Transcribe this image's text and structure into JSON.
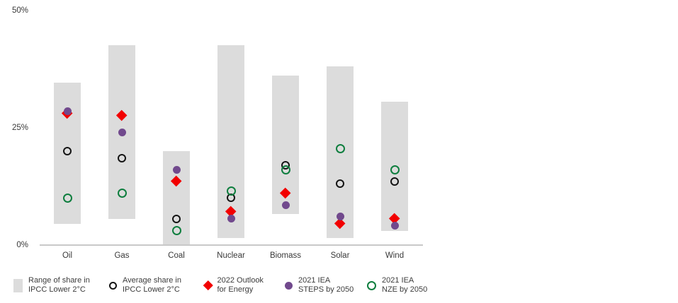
{
  "chart_data": {
    "type": "bar",
    "subtype": "range-columns-with-point-markers",
    "title": "",
    "xlabel": "",
    "ylabel": "",
    "unit": "%",
    "ylim": [
      0,
      50
    ],
    "grid": false,
    "y_ticks": [
      {
        "label": "50%",
        "value": 50
      },
      {
        "label": "25%",
        "value": 25
      },
      {
        "label": "0%",
        "value": 0
      }
    ],
    "categories": [
      "Oil",
      "Gas",
      "Coal",
      "Nuclear",
      "Biomass",
      "Solar",
      "Wind"
    ],
    "range_series": {
      "name": "Range of share in IPCC Lower 2°C",
      "low": [
        4.5,
        5.5,
        0,
        1.5,
        6.5,
        1.5,
        3
      ],
      "high": [
        34.5,
        42.5,
        20,
        42.5,
        36,
        38,
        30.5
      ]
    },
    "series": [
      {
        "name": "Average share in IPCC Lower 2°C",
        "marker": "open-circle",
        "color": "#141414",
        "values": [
          20,
          18.5,
          5.5,
          10,
          17,
          13,
          13.5
        ]
      },
      {
        "name": "2021 IEA NZE by 2050",
        "marker": "open-circle",
        "color": "#0e7e3e",
        "values": [
          10,
          11,
          3,
          11.5,
          16,
          20.5,
          16
        ]
      },
      {
        "name": "2022 Outlook for Energy",
        "marker": "diamond",
        "color": "#f20000",
        "values": [
          28,
          27.5,
          13.5,
          7,
          11,
          4.5,
          5.5
        ]
      },
      {
        "name": "2021 IEA STEPS by 2050",
        "marker": "filled-circle",
        "color": "#71498d",
        "values": [
          28.5,
          24,
          16,
          5.5,
          8.5,
          6,
          4
        ]
      }
    ],
    "legend_position": "bottom"
  },
  "legend": {
    "items": [
      {
        "swatch": "range-bar",
        "line1": "Range of share in",
        "line2": "IPCC Lower 2°C"
      },
      {
        "swatch": "open-circle-black",
        "line1": "Average share in",
        "line2": "IPCC Lower 2°C"
      },
      {
        "swatch": "diamond-red",
        "line1": "2022 Outlook",
        "line2": "for Energy"
      },
      {
        "swatch": "filled-circle-purple",
        "line1": "2021 IEA",
        "line2": "STEPS by 2050"
      },
      {
        "swatch": "open-circle-green",
        "line1": "2021 IEA",
        "line2": "NZE by 2050"
      }
    ]
  },
  "colors": {
    "range_bar": "#dcdcdc",
    "average_circle": "#141414",
    "outlook_diamond": "#f20000",
    "steps_circle": "#71498d",
    "nze_circle": "#0e7e3e",
    "axis_line": "#c8c8c8",
    "text": "#3c3c3c",
    "background": "#ffffff"
  }
}
